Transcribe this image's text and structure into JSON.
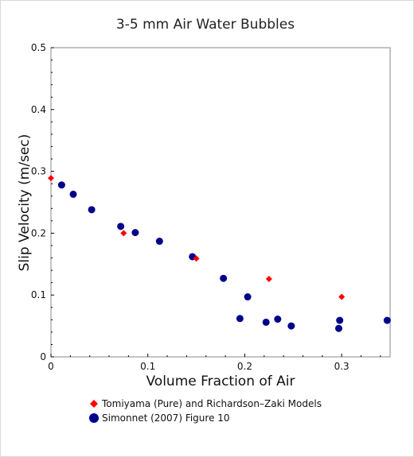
{
  "chart_data": {
    "type": "scatter",
    "title": "3-5 mm Air Water Bubbles",
    "xlabel": "Volume Fraction of Air",
    "ylabel": "Slip Velocity (m/sec)",
    "xlim": [
      0,
      0.35
    ],
    "ylim": [
      0,
      0.5
    ],
    "xticks": [
      "0",
      "0.1",
      "0.2",
      "0.3"
    ],
    "yticks": [
      "0",
      "0.1",
      "0.2",
      "0.3",
      "0.4",
      "0.5"
    ],
    "grid": false,
    "legend_position": "bottom",
    "series": [
      {
        "name": "Tomiyama (Pure) and Richardson–Zaki Models",
        "marker": "diamond",
        "color": "#ff0000",
        "points": [
          [
            0.0,
            0.289
          ],
          [
            0.075,
            0.2
          ],
          [
            0.15,
            0.159
          ],
          [
            0.225,
            0.126
          ],
          [
            0.3,
            0.097
          ]
        ]
      },
      {
        "name": "Simonnet (2007) Figure 10",
        "marker": "circle",
        "color": "#00008b",
        "points": [
          [
            0.011,
            0.278
          ],
          [
            0.023,
            0.263
          ],
          [
            0.042,
            0.238
          ],
          [
            0.072,
            0.211
          ],
          [
            0.087,
            0.201
          ],
          [
            0.112,
            0.187
          ],
          [
            0.146,
            0.162
          ],
          [
            0.178,
            0.127
          ],
          [
            0.195,
            0.062
          ],
          [
            0.203,
            0.097
          ],
          [
            0.222,
            0.056
          ],
          [
            0.234,
            0.061
          ],
          [
            0.248,
            0.05
          ],
          [
            0.297,
            0.046
          ],
          [
            0.298,
            0.059
          ],
          [
            0.347,
            0.059
          ]
        ]
      }
    ]
  }
}
